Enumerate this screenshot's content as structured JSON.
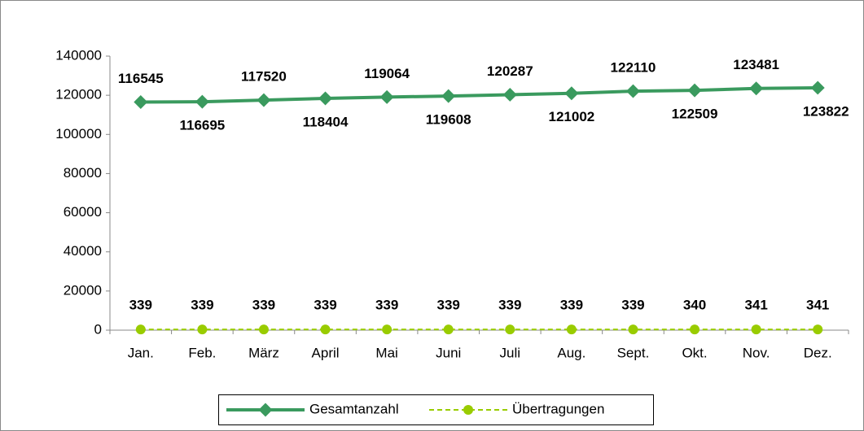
{
  "chart_data": {
    "type": "line",
    "categories": [
      "Jan.",
      "Feb.",
      "März",
      "April",
      "Mai",
      "Juni",
      "Juli",
      "Aug.",
      "Sept.",
      "Okt.",
      "Nov.",
      "Dez."
    ],
    "series": [
      {
        "name": "Gesamtanzahl",
        "color": "#3a9a5e",
        "values": [
          116545,
          116695,
          117520,
          118404,
          119064,
          119608,
          120287,
          121002,
          122110,
          122509,
          123481,
          123822
        ]
      },
      {
        "name": "Übertragungen",
        "color": "#99cc00",
        "values": [
          339,
          339,
          339,
          339,
          339,
          339,
          339,
          339,
          339,
          340,
          341,
          341
        ]
      }
    ],
    "ylim": [
      0,
      140000
    ],
    "yticks": [
      0,
      20000,
      40000,
      60000,
      80000,
      100000,
      120000,
      140000
    ],
    "legend": "bottom"
  }
}
